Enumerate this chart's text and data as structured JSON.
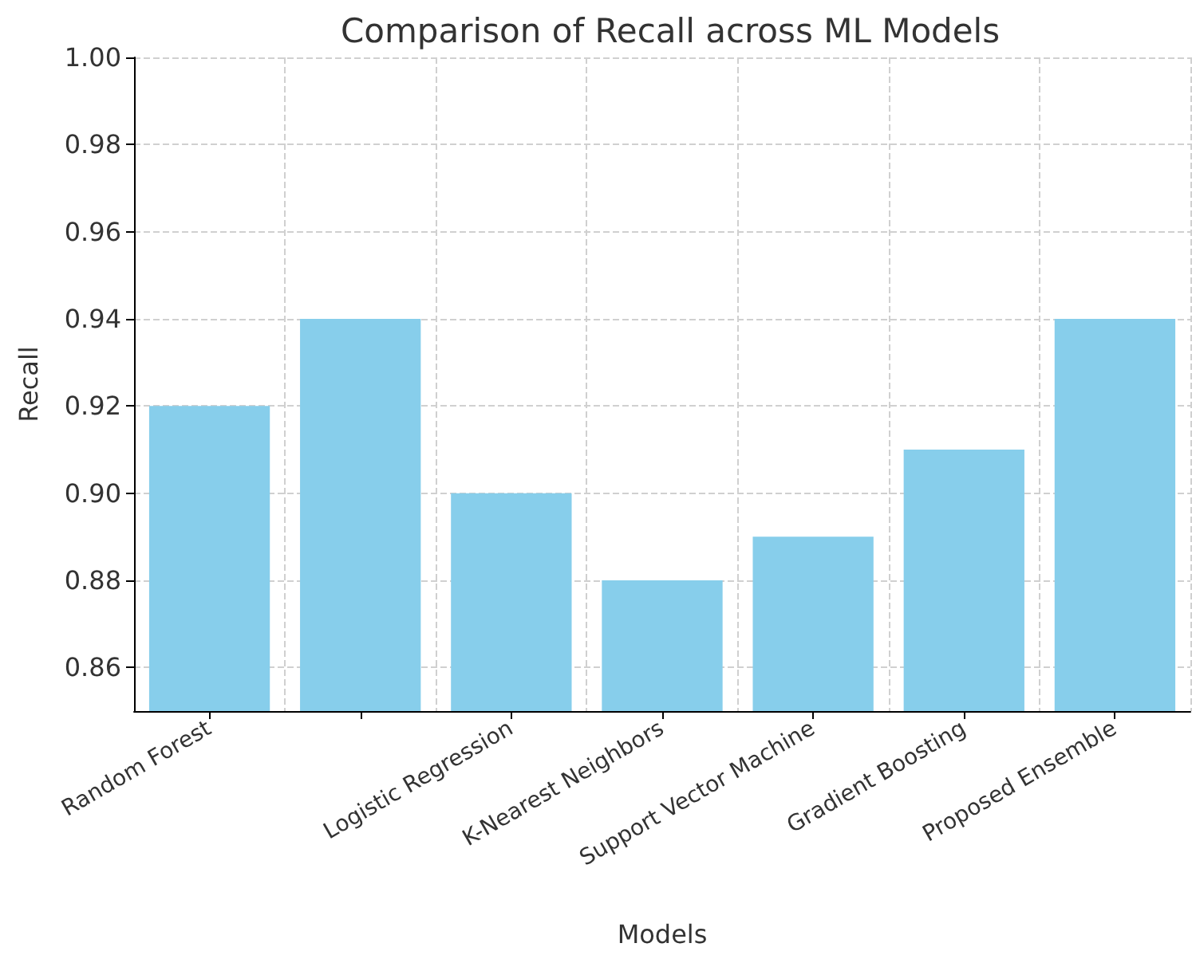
{
  "chart_data": {
    "type": "bar",
    "title": "Comparison of Recall across ML Models",
    "xlabel": "Models",
    "ylabel": "Recall",
    "categories": [
      "Random Forest",
      null,
      "Logistic Regression",
      "K-Nearest Neighbors",
      "Support Vector Machine",
      "Gradient Boosting",
      "Proposed Ensemble"
    ],
    "values": [
      0.92,
      0.94,
      0.9,
      0.88,
      0.89,
      0.91,
      0.94
    ],
    "color": "#87ceeb",
    "ylim": [
      0.85,
      1.0
    ],
    "yticks": [
      0.86,
      0.88,
      {
        "value": 0.9,
        "label": "0.90"
      },
      0.92,
      0.94,
      0.96,
      0.98,
      {
        "value": 1,
        "label": "1.00"
      }
    ],
    "grid": true
  }
}
